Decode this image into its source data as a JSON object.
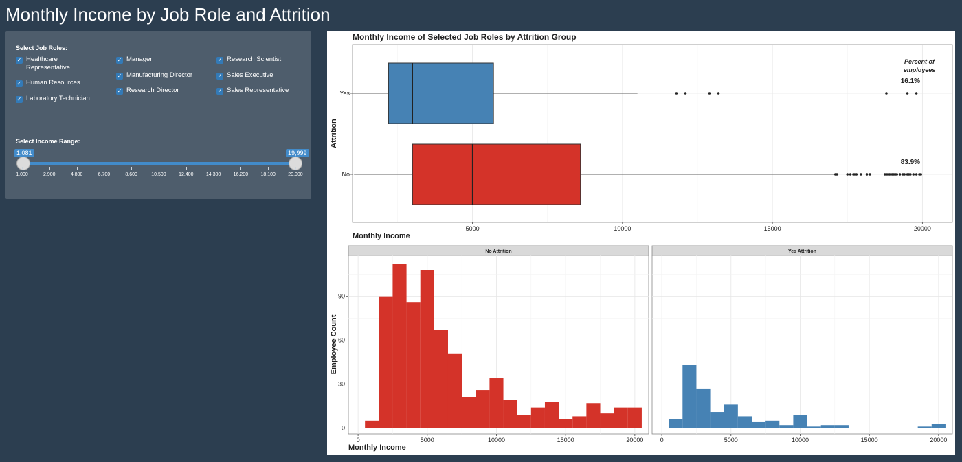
{
  "page": {
    "title": "Monthly Income by Job Role and Attrition"
  },
  "sidebar": {
    "job_roles_label": "Select Job Roles:",
    "job_roles": [
      {
        "label": "Healthcare Representative",
        "checked": true
      },
      {
        "label": "Human Resources",
        "checked": true
      },
      {
        "label": "Laboratory Technician",
        "checked": true
      },
      {
        "label": "Manager",
        "checked": true
      },
      {
        "label": "Manufacturing Director",
        "checked": true
      },
      {
        "label": "Research Director",
        "checked": true
      },
      {
        "label": "Research Scientist",
        "checked": true
      },
      {
        "label": "Sales Executive",
        "checked": true
      },
      {
        "label": "Sales Representative",
        "checked": true
      }
    ],
    "income_label": "Select Income Range:",
    "slider": {
      "min_value": "1,081",
      "max_value": "19,999",
      "ticks": [
        "1,000",
        "2,900",
        "4,800",
        "6,700",
        "8,600",
        "10,500",
        "12,400",
        "14,300",
        "16,200",
        "18,100",
        "20,000"
      ]
    }
  },
  "colors": {
    "yes": "#4682b4",
    "no": "#d43329",
    "background": "#2c3e50",
    "sidebar": "#4e5d6c",
    "accent": "#428bca"
  },
  "chart_data": [
    {
      "type": "boxplot",
      "title": "Monthly Income of Selected Job Roles by Attrition Group",
      "xlabel": "Monthly Income",
      "ylabel": "Attrition",
      "xlim": [
        1000,
        21000
      ],
      "xticks": [
        5000,
        10000,
        15000,
        20000
      ],
      "categories": [
        "Yes",
        "No"
      ],
      "legend_note": "Percent of employees",
      "series": [
        {
          "name": "Yes",
          "whisker_low": 1000,
          "q1": 2200,
          "median": 3000,
          "q3": 5700,
          "whisker_high": 10500,
          "outliers": [
            11800,
            12100,
            12900,
            13200,
            18800,
            19500,
            19800
          ],
          "percent": "16.1%"
        },
        {
          "name": "No",
          "whisker_low": 1050,
          "q1": 3000,
          "median": 5000,
          "q3": 8600,
          "whisker_high": 17200,
          "outliers": [
            17100,
            17150,
            17500,
            17600,
            17700,
            17750,
            17800,
            17950,
            18150,
            18250,
            18750,
            18800,
            18850,
            18900,
            18950,
            19000,
            19050,
            19100,
            19150,
            19250,
            19350,
            19400,
            19500,
            19550,
            19600,
            19700,
            19800,
            19900,
            19950
          ],
          "percent": "83.9%"
        }
      ]
    },
    {
      "type": "bar",
      "title": "No Attrition",
      "xlabel": "Monthly Income",
      "ylabel": "Employee Count",
      "xlim": [
        -700,
        21000
      ],
      "ylim": [
        -4,
        118
      ],
      "xticks": [
        0,
        5000,
        10000,
        15000,
        20000
      ],
      "yticks": [
        0,
        30,
        60,
        90
      ],
      "bin_width": 1000,
      "bins": [
        1000,
        2000,
        3000,
        4000,
        5000,
        6000,
        7000,
        8000,
        9000,
        10000,
        11000,
        12000,
        13000,
        14000,
        15000,
        16000,
        17000,
        18000,
        19000,
        20000
      ],
      "values": [
        5,
        90,
        112,
        86,
        108,
        67,
        51,
        21,
        26,
        34,
        19,
        9,
        14,
        18,
        6,
        8,
        17,
        10,
        14,
        14
      ]
    },
    {
      "type": "bar",
      "title": "Yes Attrition",
      "xlabel": "Monthly Income",
      "ylabel": "Employee Count",
      "xlim": [
        -700,
        21000
      ],
      "ylim": [
        -4,
        118
      ],
      "xticks": [
        0,
        5000,
        10000,
        15000,
        20000
      ],
      "bin_width": 1000,
      "bins": [
        1000,
        2000,
        3000,
        4000,
        5000,
        6000,
        7000,
        8000,
        9000,
        10000,
        11000,
        12000,
        13000,
        14000,
        15000,
        16000,
        17000,
        18000,
        19000,
        20000
      ],
      "values": [
        6,
        43,
        27,
        11,
        16,
        8,
        4,
        5,
        2,
        9,
        1,
        2,
        2,
        0,
        0,
        0,
        0,
        0,
        1,
        3
      ]
    }
  ]
}
